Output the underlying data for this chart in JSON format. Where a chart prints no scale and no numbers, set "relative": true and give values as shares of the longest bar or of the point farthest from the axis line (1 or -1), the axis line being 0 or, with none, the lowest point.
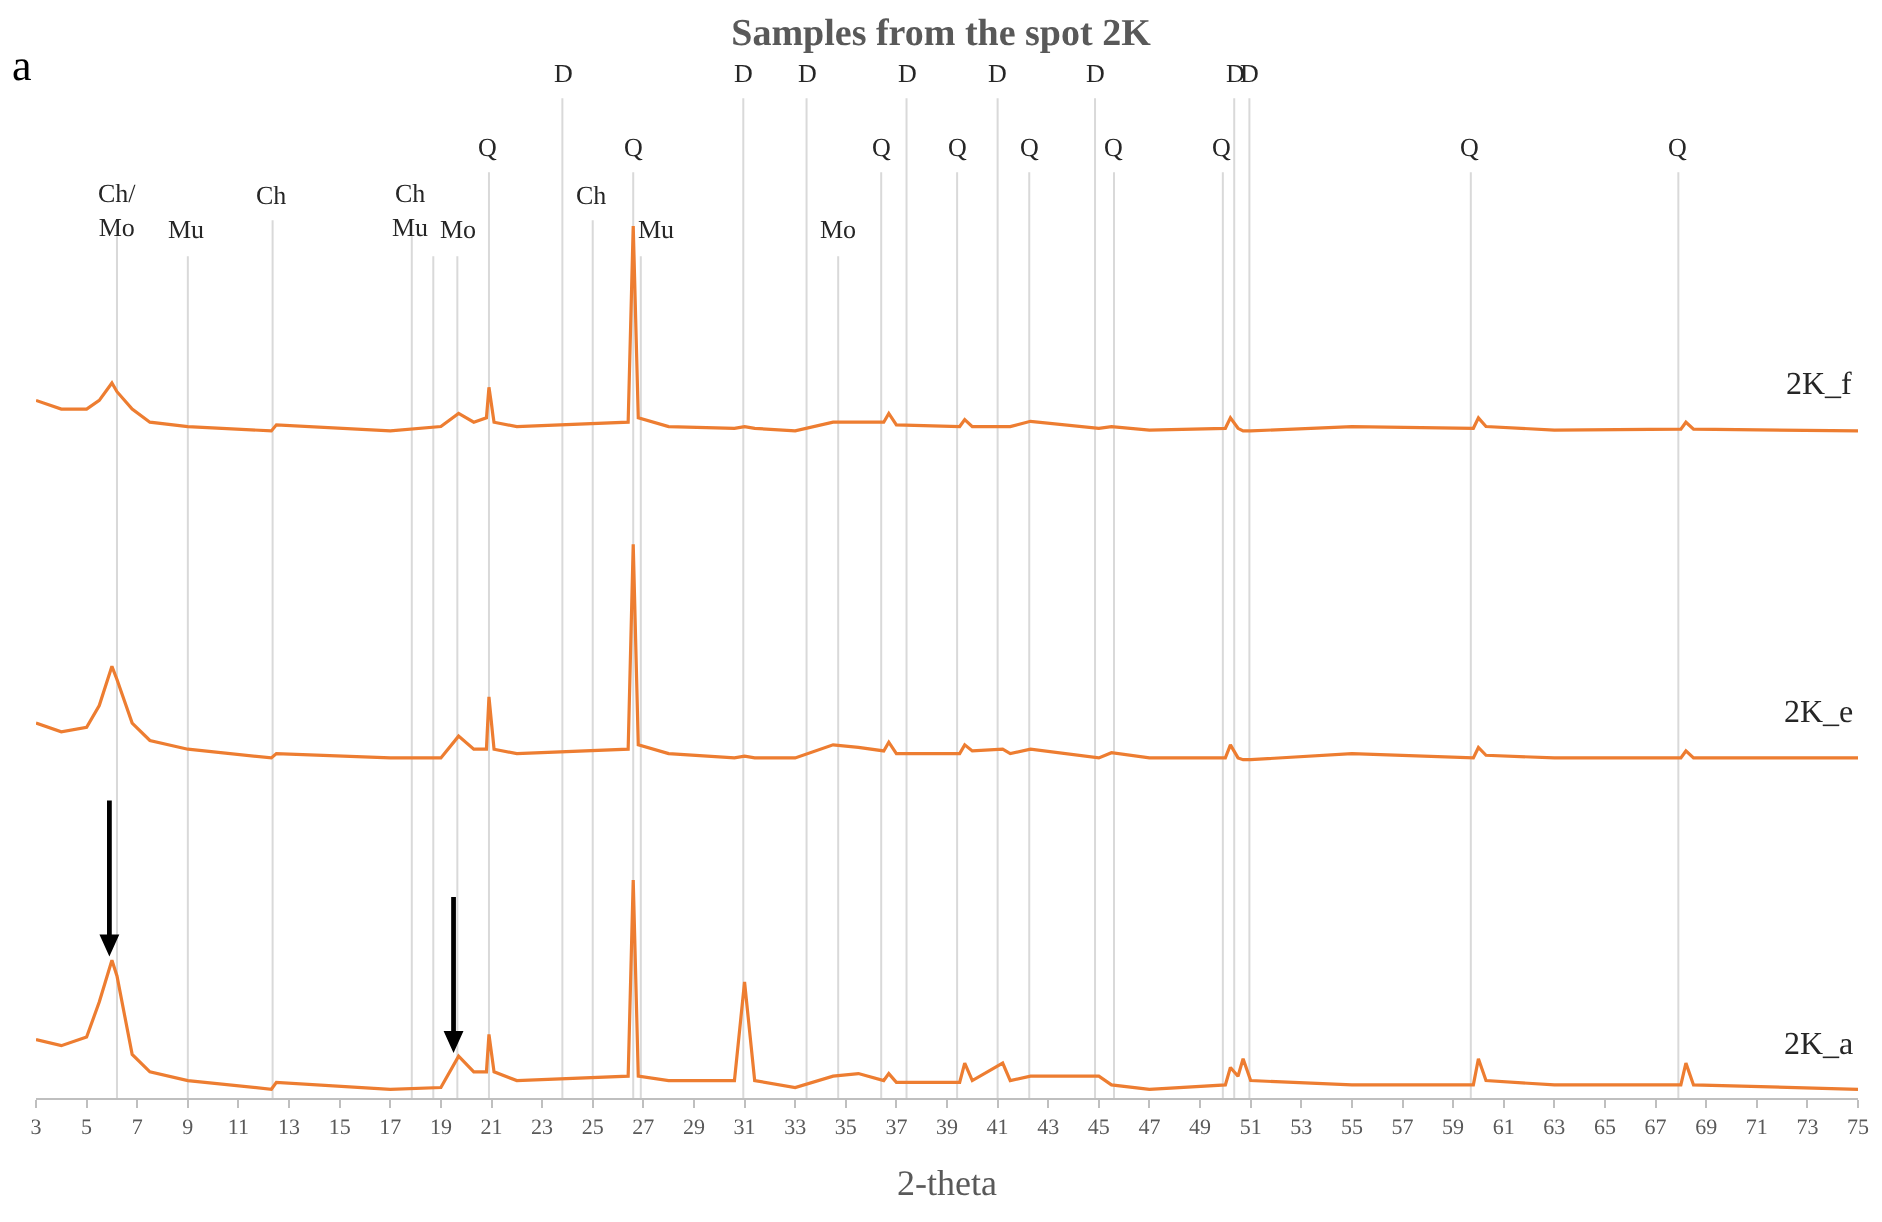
{
  "chart_data": {
    "type": "line",
    "relative": true,
    "title": "Samples from the spot 2K",
    "xlabel": "2-theta",
    "annotations": [
      "a"
    ],
    "xlim": [
      3,
      75
    ],
    "xticks": [
      3,
      5,
      7,
      9,
      11,
      13,
      15,
      17,
      19,
      21,
      23,
      25,
      27,
      29,
      31,
      33,
      35,
      37,
      39,
      41,
      43,
      45,
      47,
      49,
      51,
      53,
      55,
      57,
      59,
      61,
      63,
      65,
      67,
      69,
      71,
      73,
      75
    ],
    "grid": false,
    "legend": false,
    "marker": "none",
    "line_style": "solid",
    "x": [
      3,
      4,
      5,
      5.5,
      6,
      6.2,
      6.8,
      7.5,
      9,
      12.3,
      12.5,
      17,
      19,
      19.7,
      20.3,
      20.8,
      20.9,
      21.1,
      22,
      26.4,
      26.6,
      26.8,
      28,
      30.6,
      31,
      31.4,
      33,
      34.5,
      35.5,
      36.5,
      36.7,
      37,
      39.5,
      39.7,
      40,
      41.2,
      41.5,
      42.3,
      45,
      45.5,
      47,
      50,
      50.2,
      50.5,
      50.7,
      51,
      55,
      59.8,
      60,
      60.3,
      63,
      68,
      68.2,
      68.5,
      75
    ],
    "series": [
      {
        "name": "2K_f",
        "color": "#ed7d31",
        "values": [
          0.8,
          0.79,
          0.79,
          0.8,
          0.82,
          0.81,
          0.79,
          0.775,
          0.77,
          0.765,
          0.772,
          0.765,
          0.77,
          0.785,
          0.775,
          0.78,
          0.815,
          0.775,
          0.77,
          0.775,
          1.0,
          0.78,
          0.77,
          0.768,
          0.77,
          0.768,
          0.765,
          0.775,
          0.775,
          0.775,
          0.785,
          0.772,
          0.77,
          0.778,
          0.77,
          0.77,
          0.77,
          0.776,
          0.768,
          0.77,
          0.766,
          0.768,
          0.78,
          0.768,
          0.765,
          0.765,
          0.77,
          0.768,
          0.78,
          0.77,
          0.766,
          0.767,
          0.775,
          0.767,
          0.765
        ]
      },
      {
        "name": "2K_e",
        "color": "#ed7d31",
        "values": [
          0.43,
          0.42,
          0.425,
          0.45,
          0.495,
          0.48,
          0.43,
          0.41,
          0.4,
          0.39,
          0.395,
          0.39,
          0.39,
          0.415,
          0.4,
          0.4,
          0.46,
          0.4,
          0.395,
          0.4,
          0.635,
          0.405,
          0.395,
          0.39,
          0.392,
          0.39,
          0.39,
          0.405,
          0.402,
          0.398,
          0.408,
          0.395,
          0.395,
          0.405,
          0.398,
          0.4,
          0.395,
          0.4,
          0.39,
          0.396,
          0.39,
          0.39,
          0.405,
          0.39,
          0.388,
          0.388,
          0.395,
          0.39,
          0.402,
          0.393,
          0.39,
          0.39,
          0.398,
          0.39,
          0.39
        ]
      },
      {
        "name": "2K_a",
        "color": "#ed7d31",
        "values": [
          0.067,
          0.06,
          0.07,
          0.11,
          0.158,
          0.14,
          0.05,
          0.03,
          0.02,
          0.01,
          0.018,
          0.01,
          0.012,
          0.048,
          0.03,
          0.03,
          0.073,
          0.03,
          0.02,
          0.025,
          0.25,
          0.025,
          0.02,
          0.02,
          0.133,
          0.02,
          0.012,
          0.025,
          0.028,
          0.02,
          0.028,
          0.018,
          0.018,
          0.04,
          0.02,
          0.04,
          0.02,
          0.025,
          0.025,
          0.015,
          0.01,
          0.015,
          0.035,
          0.025,
          0.045,
          0.02,
          0.015,
          0.015,
          0.045,
          0.02,
          0.015,
          0.015,
          0.04,
          0.015,
          0.01
        ]
      }
    ],
    "ref_lines": [
      {
        "axis": "x",
        "value": 6.2,
        "label": "Ch/\nMo",
        "color": "#d9d9d9"
      },
      {
        "axis": "x",
        "value": 9.0,
        "label": "Mu",
        "color": "#d9d9d9"
      },
      {
        "axis": "x",
        "value": 12.35,
        "label": "Ch",
        "color": "#d9d9d9"
      },
      {
        "axis": "x",
        "value": 17.85,
        "label": "Ch\nMu",
        "color": "#d9d9d9"
      },
      {
        "axis": "x",
        "value": 18.7,
        "label": null,
        "color": "#d9d9d9"
      },
      {
        "axis": "x",
        "value": 19.65,
        "label": "Mo",
        "color": "#d9d9d9"
      },
      {
        "axis": "x",
        "value": 20.9,
        "label": "Q",
        "color": "#d9d9d9"
      },
      {
        "axis": "x",
        "value": 23.8,
        "label": "D",
        "color": "#d9d9d9"
      },
      {
        "axis": "x",
        "value": 25.0,
        "label": "Ch",
        "color": "#d9d9d9"
      },
      {
        "axis": "x",
        "value": 26.6,
        "label": "Q",
        "color": "#d9d9d9"
      },
      {
        "axis": "x",
        "value": 26.9,
        "label": "Mu",
        "color": "#d9d9d9"
      },
      {
        "axis": "x",
        "value": 30.95,
        "label": "D",
        "color": "#d9d9d9"
      },
      {
        "axis": "x",
        "value": 33.45,
        "label": "D",
        "color": "#d9d9d9"
      },
      {
        "axis": "x",
        "value": 34.7,
        "label": "Mo",
        "color": "#d9d9d9"
      },
      {
        "axis": "x",
        "value": 36.4,
        "label": "Q",
        "color": "#d9d9d9"
      },
      {
        "axis": "x",
        "value": 37.4,
        "label": "D",
        "color": "#d9d9d9"
      },
      {
        "axis": "x",
        "value": 39.4,
        "label": "Q",
        "color": "#d9d9d9"
      },
      {
        "axis": "x",
        "value": 41.0,
        "label": "D",
        "color": "#d9d9d9"
      },
      {
        "axis": "x",
        "value": 42.25,
        "label": "Q",
        "color": "#d9d9d9"
      },
      {
        "axis": "x",
        "value": 44.85,
        "label": "D",
        "color": "#d9d9d9"
      },
      {
        "axis": "x",
        "value": 45.6,
        "label": "Q",
        "color": "#d9d9d9"
      },
      {
        "axis": "x",
        "value": 49.9,
        "label": "Q",
        "color": "#d9d9d9"
      },
      {
        "axis": "x",
        "value": 50.35,
        "label": "D",
        "color": "#d9d9d9"
      },
      {
        "axis": "x",
        "value": 50.95,
        "label": "D",
        "color": "#d9d9d9"
      },
      {
        "axis": "x",
        "value": 59.7,
        "label": "Q",
        "color": "#d9d9d9"
      },
      {
        "axis": "x",
        "value": 67.9,
        "label": "Q",
        "color": "#d9d9d9"
      }
    ]
  }
}
